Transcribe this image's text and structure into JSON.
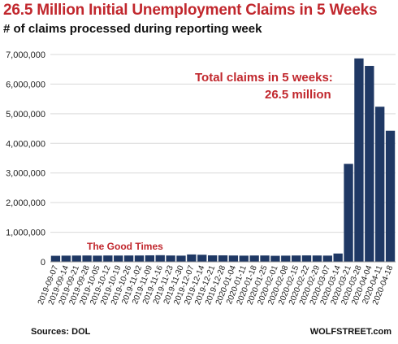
{
  "chart_data": {
    "type": "bar",
    "title": "26.5 Million Initial Unemployment Claims in 5 Weeks",
    "subtitle": "# of claims processed during reporting week",
    "ylim": [
      0,
      7000000
    ],
    "yticks": [
      0,
      1000000,
      2000000,
      3000000,
      4000000,
      5000000,
      6000000,
      7000000
    ],
    "ytick_labels": [
      "0",
      "1,000,000",
      "2,000,000",
      "3,000,000",
      "4,000,000",
      "5,000,000",
      "6,000,000",
      "7,000,000"
    ],
    "grid": true,
    "bar_color": "#1f3864",
    "categories": [
      "2019-09-07",
      "2019-09-14",
      "2019-09-21",
      "2019-09-28",
      "2019-10-05",
      "2019-10-12",
      "2019-10-19",
      "2019-10-26",
      "2019-11-02",
      "2019-11-09",
      "2019-11-16",
      "2019-11-23",
      "2019-11-30",
      "2019-12-07",
      "2019-12-14",
      "2019-12-21",
      "2019-12-28",
      "2020-01-04",
      "2020-01-11",
      "2020-01-18",
      "2020-01-25",
      "2020-02-01",
      "2020-02-08",
      "2020-02-15",
      "2020-02-22",
      "2020-02-29",
      "2020-03-07",
      "2020-03-14",
      "2020-03-21",
      "2020-03-28",
      "2020-04-04",
      "2020-04-11",
      "2020-04-18"
    ],
    "values": [
      205000,
      210000,
      213000,
      215000,
      210000,
      215000,
      213000,
      215000,
      215000,
      220000,
      225000,
      215000,
      210000,
      250000,
      240000,
      220000,
      220000,
      215000,
      210000,
      215000,
      215000,
      205000,
      210000,
      215000,
      218000,
      215000,
      211000,
      282000,
      3307000,
      6867000,
      6615000,
      5237000,
      4427000
    ],
    "annotations": [
      {
        "text": "Total claims in 5 weeks:",
        "color": "#c1272d"
      },
      {
        "text": "26.5 million",
        "color": "#c1272d"
      },
      {
        "text": "The Good Times",
        "color": "#c1272d"
      }
    ]
  },
  "footer": {
    "source": "Sources: DOL",
    "brand": "WOLFSTREET.com"
  }
}
